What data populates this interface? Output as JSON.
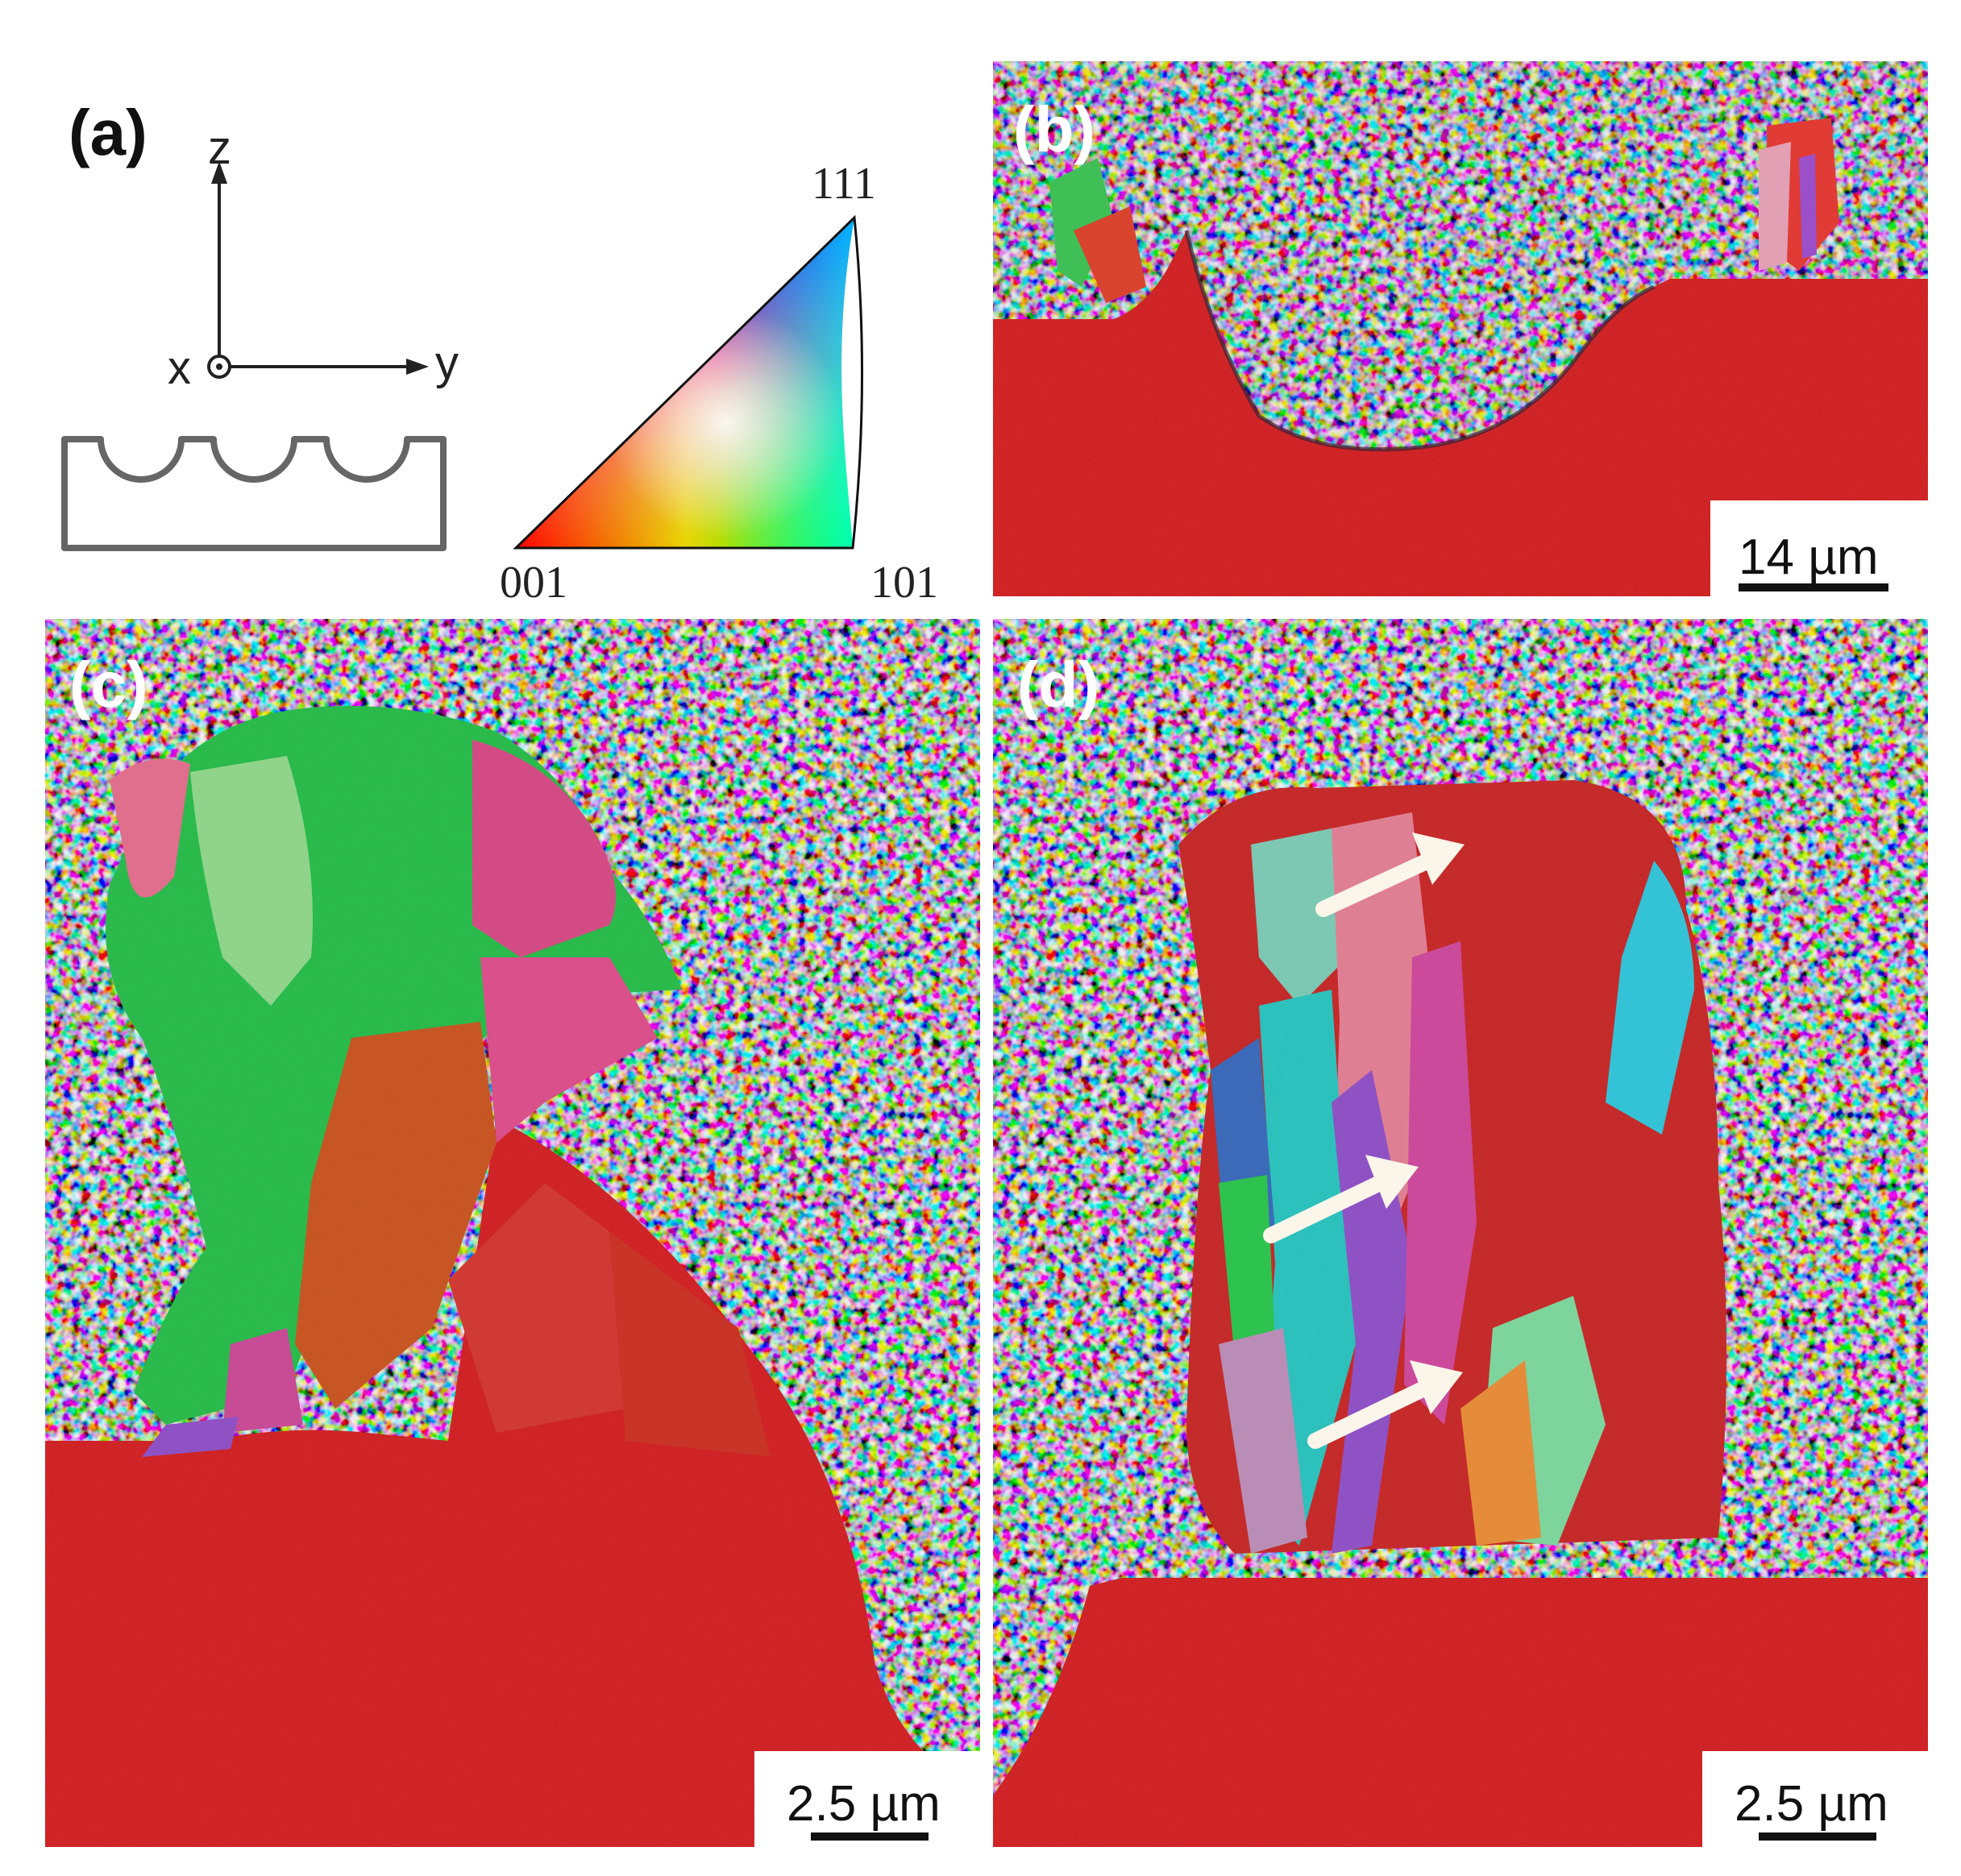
{
  "panels": {
    "a": {
      "label": "(a)",
      "axes": {
        "z": "z",
        "x": "x",
        "y": "y"
      },
      "ipf": {
        "corner_001": "001",
        "corner_101": "101",
        "corner_111": "111"
      }
    },
    "b": {
      "label": "(b)",
      "scale_bar": "14 µm"
    },
    "c": {
      "label": "(c)",
      "scale_bar": "2.5 µm"
    },
    "d": {
      "label": "(d)",
      "scale_bar": "2.5 µm",
      "arrow_count": 3
    }
  },
  "colors": {
    "substrate_red": "#d8262a",
    "grain_green": "#2ec24f",
    "grain_pink": "#d9508a",
    "grain_orange": "#cf5a26",
    "grain_cyan": "#2fc9c4",
    "grain_purple": "#8f52c4",
    "grain_blue": "#3f6fc0"
  }
}
